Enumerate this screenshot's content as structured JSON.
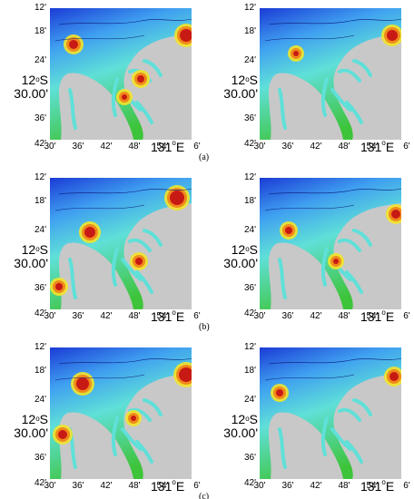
{
  "lat_ticks": [
    "12'",
    "18'",
    "24'",
    "36'",
    "42'"
  ],
  "lat_main_a": "12",
  "lat_sup": "o",
  "lat_main_b": "S",
  "lat_main_line2": "30.00'",
  "lon_ticks": [
    "30'",
    "36'",
    "42'",
    "48'",
    "54'",
    "6'"
  ],
  "lon_main_a": "131",
  "lon_sup": "o",
  "lon_main_b": "E",
  "row_tags": [
    "(a)",
    "(b)",
    "(c)"
  ],
  "colors": {
    "land": "#c8c8c8",
    "deep": "#1b3bd6",
    "mid": "#3fa0f0",
    "cyan": "#5fe0d8",
    "green": "#3ec43a",
    "yellow": "#f2e32a",
    "orange": "#f08a1a",
    "red": "#c81a14"
  }
}
